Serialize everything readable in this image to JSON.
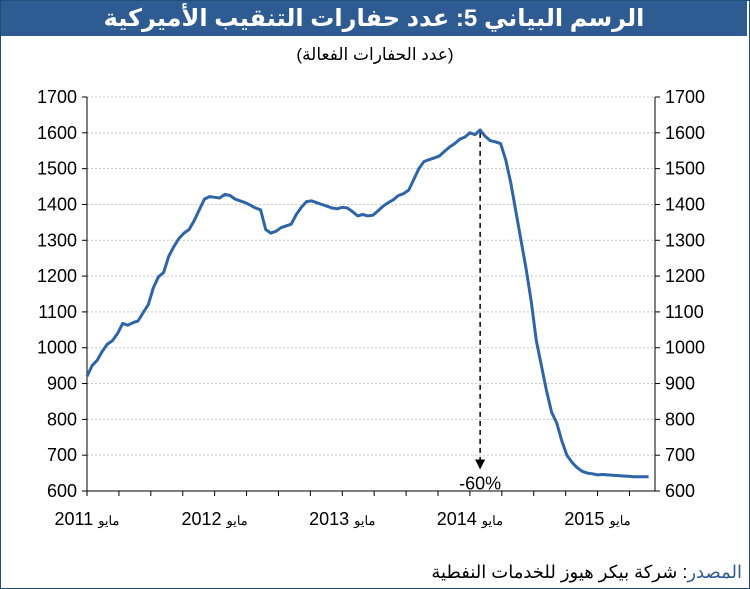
{
  "title": "الرسم البياني 5: عدد حفارات التنقيب الأميركية",
  "subtitle": "(عدد الحفارات الفعالة)",
  "source": {
    "label": "المصدر",
    "separator": ":",
    "text": " شركة بيكر هيوز للخدمات النفطية"
  },
  "colors": {
    "title_bg": "#2f5b93",
    "line": "#2e64a8",
    "grid": "#c8c8c8"
  },
  "chart_data": {
    "type": "line",
    "title": "الرسم البياني 5: عدد حفارات التنقيب الأميركية",
    "subtitle": "(عدد الحفارات الفعالة)",
    "ylim": [
      600,
      1700
    ],
    "yticks": [
      600,
      700,
      800,
      900,
      1000,
      1100,
      1200,
      1300,
      1400,
      1500,
      1600,
      1700
    ],
    "y_axis_both_sides": true,
    "grid": "horizontal dotted",
    "xlim": [
      2011.0,
      2015.45
    ],
    "xticks": [
      {
        "x": 2011.0,
        "label": "2011",
        "month": "مايو"
      },
      {
        "x": 2012.0,
        "label": "2012",
        "month": "مايو"
      },
      {
        "x": 2013.0,
        "label": "2013",
        "month": "مايو"
      },
      {
        "x": 2014.0,
        "label": "2014",
        "month": "مايو"
      },
      {
        "x": 2015.0,
        "label": "2015",
        "month": "مايو"
      }
    ],
    "series": [
      {
        "x": [
          2011.0,
          2011.04,
          2011.08,
          2011.12,
          2011.16,
          2011.2,
          2011.24,
          2011.28,
          2011.32,
          2011.36,
          2011.4,
          2011.44,
          2011.48,
          2011.52,
          2011.56,
          2011.6,
          2011.64,
          2011.68,
          2011.72,
          2011.76,
          2011.8,
          2011.84,
          2011.88,
          2011.92,
          2011.96,
          2012.0,
          2012.04,
          2012.08,
          2012.12,
          2012.16,
          2012.2,
          2012.24,
          2012.28,
          2012.32,
          2012.36,
          2012.4,
          2012.44,
          2012.48,
          2012.52,
          2012.56,
          2012.6,
          2012.64,
          2012.68,
          2012.72,
          2012.76,
          2012.8,
          2012.84,
          2012.88,
          2012.92,
          2012.96,
          2013.0,
          2013.04,
          2013.08,
          2013.12,
          2013.16,
          2013.2,
          2013.24,
          2013.28,
          2013.32,
          2013.36,
          2013.4,
          2013.44,
          2013.48,
          2013.52,
          2013.56,
          2013.6,
          2013.64,
          2013.68,
          2013.72,
          2013.76,
          2013.8,
          2013.84,
          2013.88,
          2013.92,
          2013.96,
          2014.0,
          2014.04,
          2014.08,
          2014.12,
          2014.16,
          2014.2,
          2014.24,
          2014.28,
          2014.32,
          2014.36,
          2014.4,
          2014.44,
          2014.48,
          2014.52,
          2014.56,
          2014.6,
          2014.64,
          2014.68,
          2014.72,
          2014.76,
          2014.8,
          2014.84,
          2014.88,
          2014.92,
          2014.96,
          2015.0,
          2015.04,
          2015.08,
          2015.12,
          2015.16,
          2015.2,
          2015.24,
          2015.28,
          2015.32,
          2015.36,
          2015.4
        ],
        "y": [
          920,
          950,
          965,
          990,
          1010,
          1020,
          1040,
          1068,
          1063,
          1070,
          1075,
          1098,
          1120,
          1168,
          1198,
          1210,
          1255,
          1282,
          1305,
          1320,
          1330,
          1355,
          1385,
          1415,
          1422,
          1420,
          1418,
          1428,
          1425,
          1415,
          1410,
          1405,
          1398,
          1390,
          1385,
          1330,
          1320,
          1325,
          1335,
          1340,
          1345,
          1372,
          1392,
          1408,
          1410,
          1405,
          1400,
          1395,
          1390,
          1388,
          1392,
          1390,
          1380,
          1368,
          1372,
          1368,
          1370,
          1382,
          1395,
          1405,
          1413,
          1425,
          1430,
          1440,
          1470,
          1500,
          1520,
          1525,
          1530,
          1535,
          1548,
          1560,
          1570,
          1582,
          1588,
          1600,
          1595,
          1608,
          1590,
          1578,
          1575,
          1570,
          1525,
          1460,
          1380,
          1300,
          1220,
          1130,
          1020,
          950,
          880,
          820,
          790,
          740,
          700,
          680,
          665,
          655,
          650,
          648,
          645,
          646,
          645,
          644,
          643,
          642,
          641,
          640,
          640,
          640,
          640
        ]
      }
    ],
    "annotations": [
      {
        "text": "-60%",
        "type": "dashed-arrow",
        "from": {
          "x": 2014.08,
          "y": 1600
        },
        "to": {
          "x": 2014.08,
          "y": 660
        }
      }
    ]
  }
}
